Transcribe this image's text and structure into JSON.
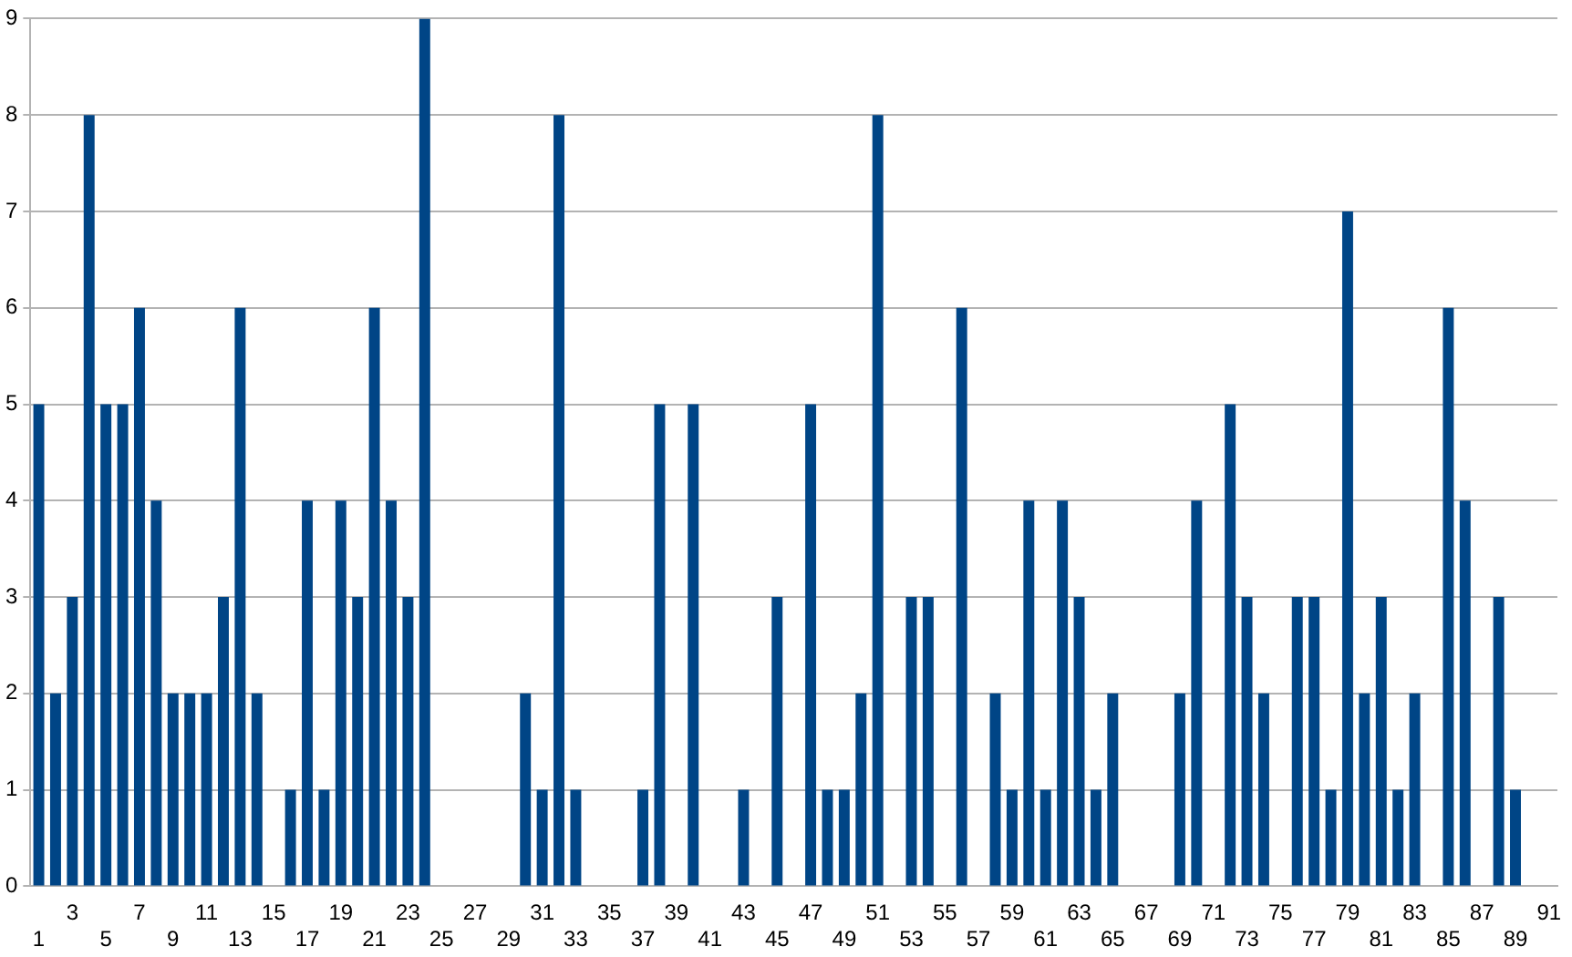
{
  "chart_data": {
    "type": "bar",
    "categories": [
      "1",
      null,
      "3",
      null,
      "5",
      null,
      "7",
      null,
      "9",
      null,
      "11",
      null,
      "13",
      null,
      "15",
      null,
      "17",
      null,
      "19",
      null,
      "21",
      null,
      "23",
      null,
      "25",
      null,
      "27",
      null,
      "29",
      null,
      "31",
      null,
      "33",
      null,
      "35",
      null,
      "37",
      null,
      "39",
      null,
      "41",
      null,
      "43",
      null,
      "45",
      null,
      "47",
      null,
      "49",
      null,
      "51",
      null,
      "53",
      null,
      "55",
      null,
      "57",
      null,
      "59",
      null,
      "61",
      null,
      "63",
      null,
      "65",
      null,
      "67",
      null,
      "69",
      null,
      "71",
      null,
      "73",
      null,
      "75",
      null,
      "77",
      null,
      "79",
      null,
      "81",
      null,
      "83",
      null,
      "85",
      null,
      "87",
      null,
      "89",
      null,
      "91"
    ],
    "values": [
      5,
      2,
      3,
      8,
      5,
      5,
      6,
      4,
      2,
      2,
      2,
      3,
      6,
      2,
      0,
      1,
      4,
      1,
      4,
      3,
      6,
      4,
      3,
      9,
      0,
      0,
      0,
      0,
      0,
      2,
      1,
      8,
      1,
      0,
      0,
      0,
      1,
      5,
      0,
      5,
      0,
      0,
      1,
      0,
      3,
      0,
      5,
      1,
      1,
      2,
      8,
      0,
      3,
      3,
      0,
      6,
      0,
      2,
      1,
      4,
      1,
      4,
      3,
      1,
      2,
      0,
      0,
      0,
      2,
      4,
      0,
      5,
      3,
      2,
      0,
      3,
      3,
      1,
      7,
      2,
      3,
      1,
      2,
      0,
      6,
      4,
      0,
      3,
      1,
      0,
      null
    ],
    "color": "#004586",
    "ylim": [
      0,
      9
    ],
    "yticks": [
      0,
      1,
      2,
      3,
      4,
      5,
      6,
      7,
      8,
      9
    ],
    "grid": "y",
    "legend": false
  }
}
